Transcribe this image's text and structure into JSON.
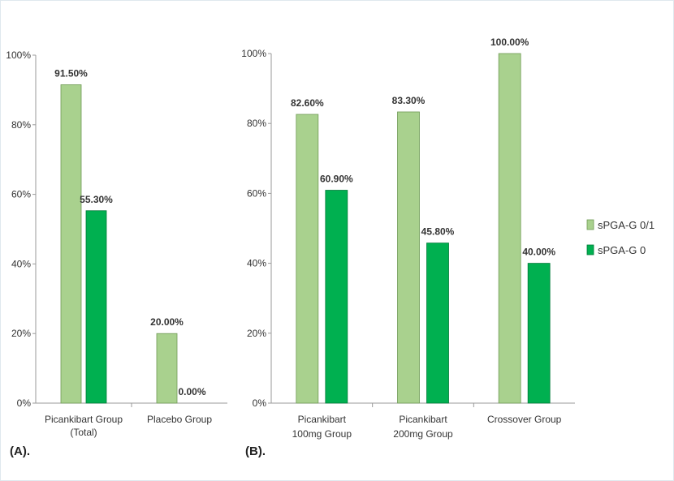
{
  "colors": {
    "border": "#dfe8ee",
    "axis": "#9a9a9a",
    "series_light": "#a9d18e",
    "series_light_stroke": "#6f9a55",
    "series_dark": "#00b050",
    "series_dark_stroke": "#007a38"
  },
  "legend": {
    "placement": "right",
    "items": [
      "sPGA-G 0/1",
      "sPGA-G 0"
    ]
  },
  "chart_data": [
    {
      "type": "bar",
      "panel_label": "(A).",
      "categories": [
        [
          "Picankibart  Group",
          "(Total)"
        ],
        [
          "Placebo Group"
        ]
      ],
      "series": [
        {
          "name": "sPGA-G 0/1",
          "values": [
            91.5,
            20.0
          ],
          "labels": [
            "91.50%",
            "20.00%"
          ]
        },
        {
          "name": "sPGA-G 0",
          "values": [
            55.3,
            0.0
          ],
          "labels": [
            "55.30%",
            "0.00%"
          ]
        }
      ],
      "ylim": [
        0,
        100
      ],
      "yticks": [
        "0%",
        "20%",
        "40%",
        "60%",
        "80%",
        "100%"
      ],
      "ytick_values": [
        0,
        20,
        40,
        60,
        80,
        100
      ],
      "grid": false
    },
    {
      "type": "bar",
      "panel_label": "(B).",
      "categories": [
        [
          "Picankibart",
          "100mg Group"
        ],
        [
          "Picankibart",
          "200mg Group"
        ],
        [
          "Crossover Group"
        ]
      ],
      "series": [
        {
          "name": "sPGA-G 0/1",
          "values": [
            82.6,
            83.3,
            100.0
          ],
          "labels": [
            "82.60%",
            "83.30%",
            "100.00%"
          ]
        },
        {
          "name": "sPGA-G 0",
          "values": [
            60.9,
            45.8,
            40.0
          ],
          "labels": [
            "60.90%",
            "45.80%",
            "40.00%"
          ]
        }
      ],
      "ylim": [
        0,
        100
      ],
      "yticks": [
        "0%",
        "20%",
        "40%",
        "60%",
        "80%",
        "100%"
      ],
      "ytick_values": [
        0,
        20,
        40,
        60,
        80,
        100
      ],
      "grid": false
    }
  ]
}
